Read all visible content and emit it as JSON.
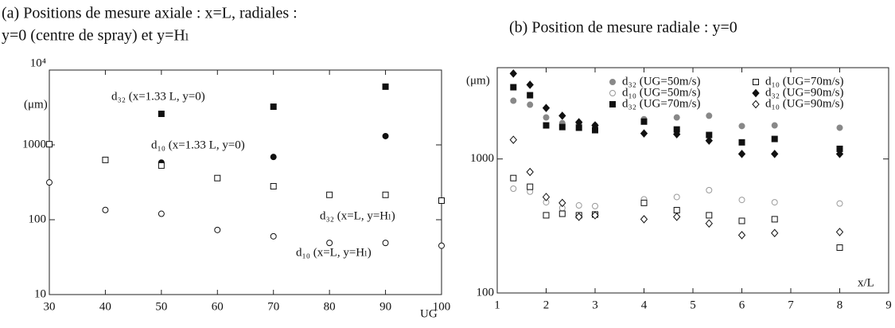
{
  "chart_data": [
    {
      "type": "scatter",
      "title": [
        "(a) Positions de mesure axiale : x=L, radiales :",
        "y=0 (centre de spray) et y=Hₗ"
      ],
      "ylabel": "(μm)",
      "xlabel": "UG",
      "log_y": true,
      "legend": "inline",
      "x": [
        30,
        40,
        50,
        60,
        70,
        80,
        90,
        100
      ],
      "xlim": [
        30,
        100
      ],
      "xticks": [
        30,
        40,
        50,
        60,
        70,
        80,
        90,
        100
      ],
      "ylim": [
        10,
        10000
      ],
      "yticks": [
        10,
        100,
        1000,
        {
          "value": 10000,
          "label": "10⁴"
        }
      ],
      "series": [
        {
          "name": "d₃₂ (x=1.33 L, y=0)",
          "color": "#111111",
          "marker": "square",
          "filled": true,
          "line": "solid",
          "values": [
            null,
            null,
            2600,
            null,
            3240,
            null,
            6000,
            null
          ]
        },
        {
          "name": "d₁₀ (x=1.33 L, y=0)",
          "color": "#111111",
          "marker": "circle",
          "filled": true,
          "line": "dashed",
          "values": [
            null,
            null,
            580,
            null,
            690,
            null,
            1310,
            null
          ]
        },
        {
          "name": "d₃₂ (x=L, y=Hₗ)",
          "color": "#111111",
          "marker": "square",
          "filled": false,
          "line": null,
          "values": [
            1020,
            630,
            530,
            360,
            280,
            215,
            215,
            180
          ]
        },
        {
          "name": "d₁₀ (x=L, y=Hₗ)",
          "color": "#111111",
          "marker": "circle",
          "filled": false,
          "line": null,
          "values": [
            315,
            135,
            120,
            73,
            60,
            49,
            49,
            45
          ]
        }
      ]
    },
    {
      "type": "scatter",
      "title": [
        "(b) Position de mesure radiale : y=0"
      ],
      "ylabel": "(μm)",
      "xlabel": "x/L",
      "log_y": true,
      "legend": "top-right",
      "x": [
        1.33,
        1.67,
        2,
        2.33,
        2.67,
        3,
        4,
        4.67,
        5.33,
        6,
        6.67,
        8
      ],
      "xlim": [
        1,
        9
      ],
      "xticks": [
        1,
        2,
        3,
        4,
        5,
        6,
        7,
        8,
        9
      ],
      "ylim": [
        100,
        4800
      ],
      "yticks": [
        100,
        1000
      ],
      "series": [
        {
          "name": "d₃₂ (UG=50m/s)",
          "color": "#888888",
          "marker": "circle",
          "filled": true,
          "line": null,
          "values": [
            2720,
            2540,
            2040,
            1850,
            1830,
            1780,
            1980,
            2040,
            2100,
            1760,
            1780,
            1710
          ]
        },
        {
          "name": "d₁₀ (UG=50m/s)",
          "color": "#999999",
          "marker": "circle",
          "filled": false,
          "line": null,
          "values": [
            600,
            570,
            475,
            430,
            450,
            445,
            500,
            520,
            585,
            495,
            475,
            465
          ]
        },
        {
          "name": "d₃₂ (UG=70m/s)",
          "color": "#111111",
          "marker": "square",
          "filled": true,
          "line": null,
          "values": [
            3430,
            2990,
            1780,
            1730,
            1710,
            1640,
            1900,
            1660,
            1510,
            1330,
            1410,
            1190
          ]
        },
        {
          "name": "d₁₀ (UG=70m/s)",
          "color": "#111111",
          "marker": "square",
          "filled": false,
          "line": null,
          "values": [
            720,
            620,
            380,
            390,
            380,
            385,
            470,
            415,
            380,
            345,
            355,
            218
          ]
        },
        {
          "name": "d₃₂ (UG=90m/s)",
          "color": "#111111",
          "marker": "diamond",
          "filled": true,
          "line": null,
          "values": [
            4340,
            3580,
            2400,
            2100,
            1880,
            1780,
            1550,
            1530,
            1370,
            1090,
            1090,
            1090
          ]
        },
        {
          "name": "d₁₀ (UG=90m/s)",
          "color": "#111111",
          "marker": "diamond",
          "filled": false,
          "line": null,
          "values": [
            1390,
            800,
            520,
            470,
            370,
            380,
            355,
            370,
            330,
            270,
            280,
            285
          ]
        }
      ]
    }
  ]
}
